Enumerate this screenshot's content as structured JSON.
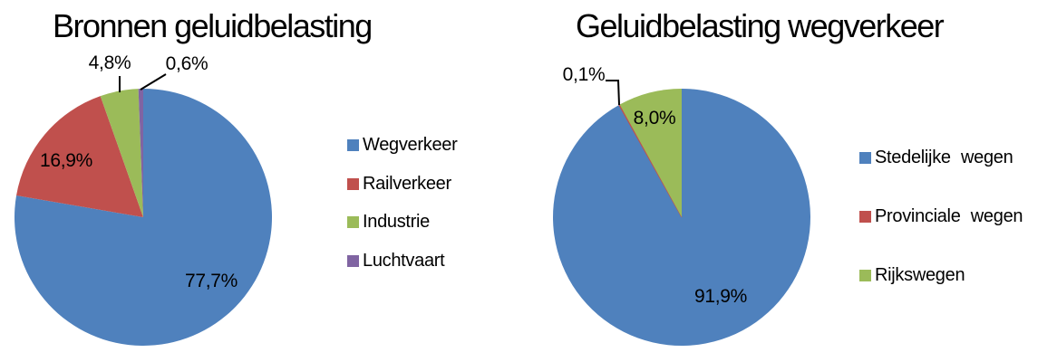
{
  "figure": {
    "background": "#ffffff",
    "text_color": "#000000"
  },
  "palette": {
    "blue": "#4F81BD",
    "red": "#C0504D",
    "green": "#9BBB59",
    "purple": "#8064A2"
  },
  "chart_data": [
    {
      "type": "pie",
      "title": "Bronnen geluidbelasting",
      "legend_position": "right",
      "start_angle_deg": 0,
      "direction": "clockwise",
      "slices": [
        {
          "label": "Wegverkeer",
          "value": 77.7,
          "display": "77,7%",
          "color": "#4F81BD"
        },
        {
          "label": "Railverkeer",
          "value": 16.9,
          "display": "16,9%",
          "color": "#C0504D"
        },
        {
          "label": "Industrie",
          "value": 4.8,
          "display": "4,8%",
          "color": "#9BBB59"
        },
        {
          "label": "Luchtvaart",
          "value": 0.6,
          "display": "0,6%",
          "color": "#8064A2"
        }
      ]
    },
    {
      "type": "pie",
      "title": "Geluidbelasting wegverkeer",
      "legend_position": "right",
      "start_angle_deg": 0,
      "direction": "clockwise",
      "slices": [
        {
          "label": "Stedelijke wegen",
          "value": 91.9,
          "display": "91,9%",
          "color": "#4F81BD"
        },
        {
          "label": "Provinciale wegen",
          "value": 0.1,
          "display": "0,1%",
          "color": "#C0504D"
        },
        {
          "label": "Rijkswegen",
          "value": 8.0,
          "display": "8,0%",
          "color": "#9BBB59"
        }
      ]
    }
  ]
}
